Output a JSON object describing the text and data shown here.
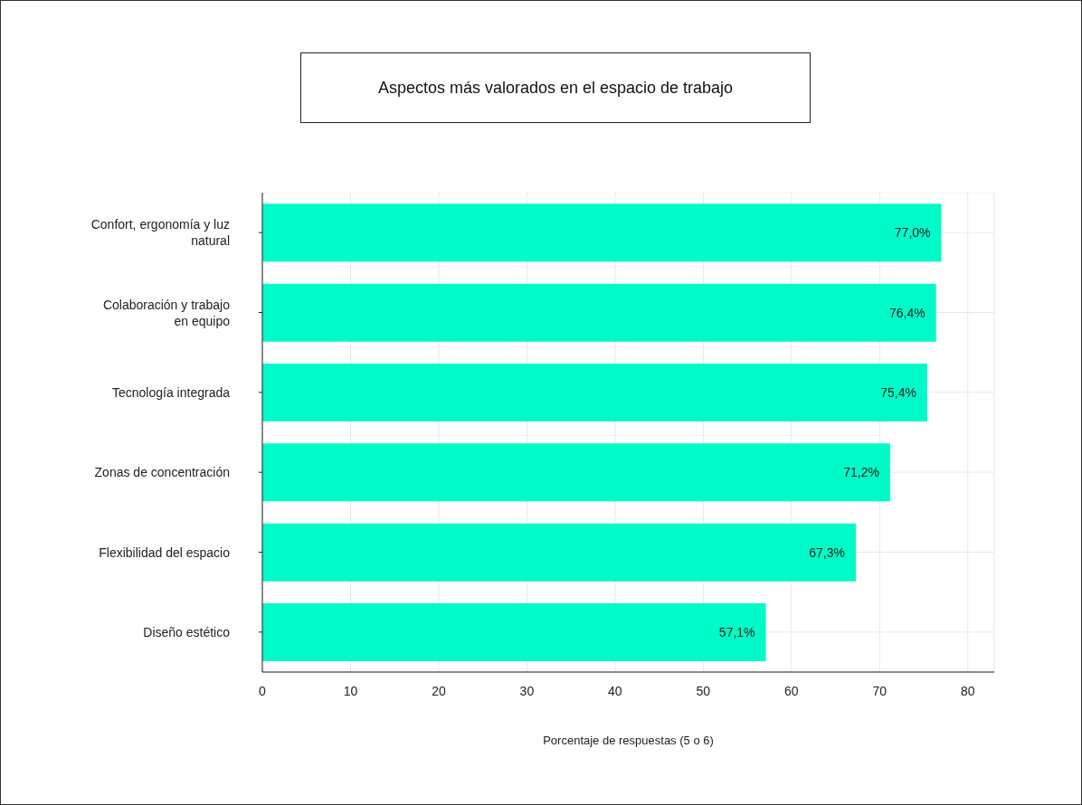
{
  "chart_data": {
    "type": "bar",
    "orientation": "horizontal",
    "title": "Aspectos más valorados en el espacio de trabajo",
    "xlabel": "Porcentaje de respuestas (5 o 6)",
    "categories": [
      "Confort, ergonomía y luz natural",
      "Colaboración y trabajo en equipo",
      "Tecnología integrada",
      "Zonas de concentración",
      "Flexibilidad del espacio",
      "Diseño estético"
    ],
    "values": [
      77.0,
      76.4,
      75.4,
      71.2,
      67.3,
      57.1
    ],
    "value_labels": [
      "77,0%",
      "76,4%",
      "75,4%",
      "71,2%",
      "67,3%",
      "57,1%"
    ],
    "color": "#00fac8",
    "xlim": [
      0,
      83
    ],
    "xticks": [
      0,
      10,
      20,
      30,
      40,
      50,
      60,
      70,
      80
    ],
    "grid": true,
    "legend": false
  }
}
